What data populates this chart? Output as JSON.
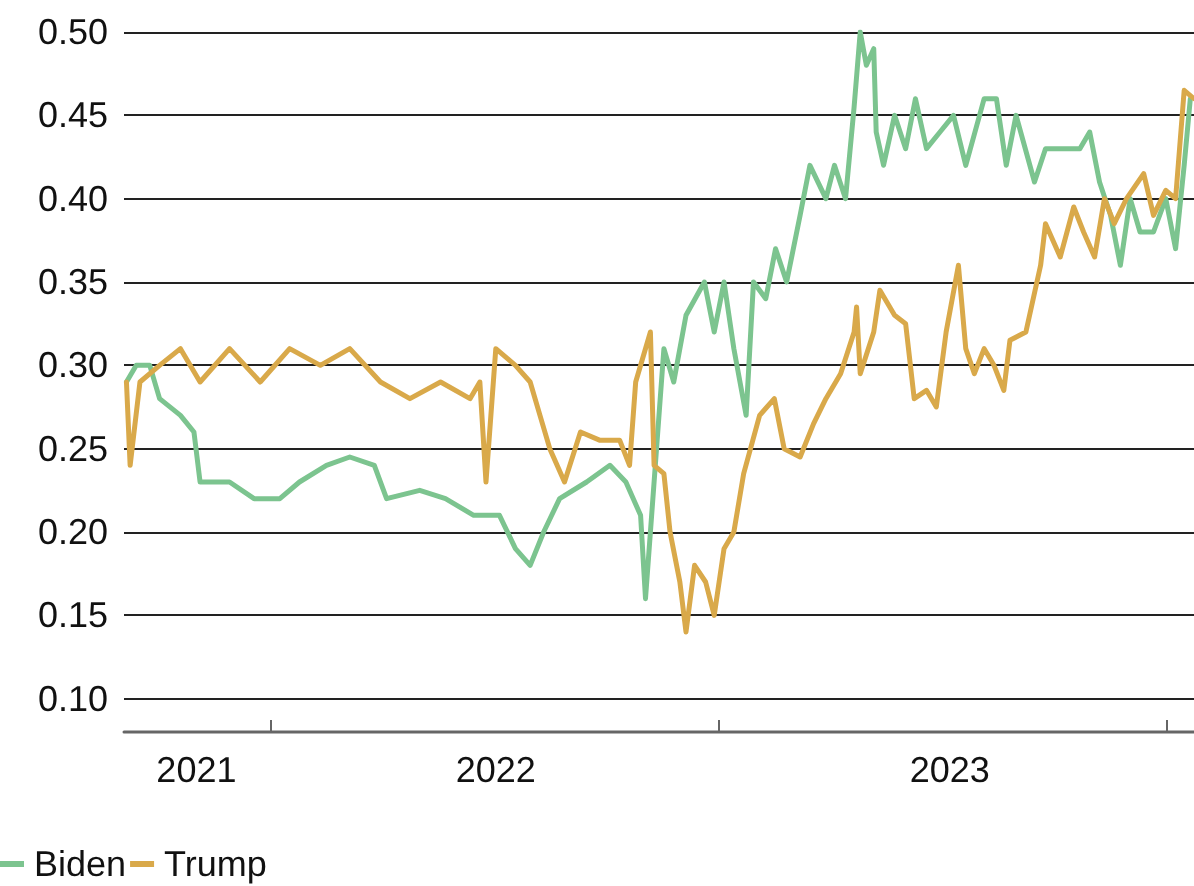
{
  "chart_data": {
    "type": "line",
    "xlim": [
      "2021-09-04",
      "2024-01-24"
    ],
    "xticks": [
      {
        "value": "2021-11-02",
        "label": "2021"
      },
      {
        "value": "2022-01-01",
        "label": null
      },
      {
        "value": "2022-07-04",
        "label": "2022"
      },
      {
        "value": "2023-01-01",
        "label": null
      },
      {
        "value": "2023-07-09",
        "label": "2023"
      },
      {
        "value": "2024-01-01",
        "label": null
      }
    ],
    "ylim": [
      0.08,
      0.5
    ],
    "yticks": [
      {
        "value": 0.1,
        "label": "0.10"
      },
      {
        "value": 0.15,
        "label": "0.15"
      },
      {
        "value": 0.2,
        "label": "0.20"
      },
      {
        "value": 0.25,
        "label": "0.25"
      },
      {
        "value": 0.3,
        "label": "0.30"
      },
      {
        "value": 0.35,
        "label": "0.35"
      },
      {
        "value": 0.4,
        "label": "0.40"
      },
      {
        "value": 0.45,
        "label": "0.45"
      },
      {
        "value": 0.5,
        "label": "0.50"
      }
    ],
    "grid": "y",
    "legend": "bottom",
    "marker": "none",
    "line_style": "solid",
    "series": [
      {
        "name": "Biden",
        "color": "#7cc48f",
        "x": [
          "2021-09-06",
          "2021-09-14",
          "2021-09-25",
          "2021-10-03",
          "2021-10-20",
          "2021-10-31",
          "2021-11-05",
          "2021-11-29",
          "2021-12-19",
          "2022-01-09",
          "2022-01-25",
          "2022-02-16",
          "2022-03-07",
          "2022-03-27",
          "2022-04-06",
          "2022-05-03",
          "2022-05-24",
          "2022-06-16",
          "2022-07-07",
          "2022-07-20",
          "2022-08-01",
          "2022-08-12",
          "2022-08-25",
          "2022-09-16",
          "2022-10-05",
          "2022-10-18",
          "2022-10-30",
          "2022-11-03",
          "2022-11-12",
          "2022-11-18",
          "2022-11-26",
          "2022-12-06",
          "2022-12-21",
          "2022-12-29",
          "2023-01-06",
          "2023-01-14",
          "2023-01-24",
          "2023-01-30",
          "2023-02-09",
          "2023-02-17",
          "2023-02-26",
          "2023-03-09",
          "2023-03-17",
          "2023-03-30",
          "2023-04-06",
          "2023-04-15",
          "2023-04-22",
          "2023-04-27",
          "2023-05-02",
          "2023-05-08",
          "2023-05-10",
          "2023-05-16",
          "2023-05-25",
          "2023-06-03",
          "2023-06-11",
          "2023-06-20",
          "2023-07-01",
          "2023-07-12",
          "2023-07-22",
          "2023-08-06",
          "2023-08-16",
          "2023-08-24",
          "2023-09-01",
          "2023-09-16",
          "2023-09-25",
          "2023-10-12",
          "2023-10-23",
          "2023-10-31",
          "2023-11-08",
          "2023-11-17",
          "2023-11-25",
          "2023-12-03",
          "2023-12-11",
          "2023-12-22",
          "2024-01-01",
          "2024-01-09",
          "2024-01-16",
          "2024-01-21"
        ],
        "values": [
          0.29,
          0.3,
          0.3,
          0.28,
          0.27,
          0.26,
          0.23,
          0.23,
          0.22,
          0.22,
          0.23,
          0.24,
          0.245,
          0.24,
          0.22,
          0.225,
          0.22,
          0.21,
          0.21,
          0.19,
          0.18,
          0.2,
          0.22,
          0.23,
          0.24,
          0.23,
          0.21,
          0.16,
          0.25,
          0.31,
          0.29,
          0.33,
          0.35,
          0.32,
          0.35,
          0.31,
          0.27,
          0.35,
          0.34,
          0.37,
          0.35,
          0.39,
          0.42,
          0.4,
          0.42,
          0.4,
          0.455,
          0.5,
          0.48,
          0.49,
          0.44,
          0.42,
          0.45,
          0.43,
          0.46,
          0.43,
          0.44,
          0.45,
          0.42,
          0.46,
          0.46,
          0.42,
          0.45,
          0.41,
          0.43,
          0.43,
          0.43,
          0.44,
          0.41,
          0.39,
          0.36,
          0.4,
          0.38,
          0.38,
          0.4,
          0.37,
          0.42,
          0.46
        ]
      },
      {
        "name": "Trump",
        "color": "#d9a94a",
        "x": [
          "2021-09-06",
          "2021-09-09",
          "2021-09-17",
          "2021-10-03",
          "2021-10-20",
          "2021-11-05",
          "2021-11-29",
          "2021-12-24",
          "2022-01-17",
          "2022-02-11",
          "2022-03-07",
          "2022-04-01",
          "2022-04-25",
          "2022-05-20",
          "2022-06-13",
          "2022-06-21",
          "2022-06-26",
          "2022-07-04",
          "2022-07-20",
          "2022-08-01",
          "2022-08-09",
          "2022-08-17",
          "2022-08-29",
          "2022-09-11",
          "2022-09-27",
          "2022-10-13",
          "2022-10-21",
          "2022-10-26",
          "2022-11-07",
          "2022-11-10",
          "2022-11-18",
          "2022-11-23",
          "2022-12-01",
          "2022-12-06",
          "2022-12-13",
          "2022-12-22",
          "2022-12-29",
          "2023-01-06",
          "2023-01-14",
          "2023-01-22",
          "2023-02-04",
          "2023-02-16",
          "2023-02-24",
          "2023-03-09",
          "2023-03-20",
          "2023-03-30",
          "2023-04-11",
          "2023-04-22",
          "2023-04-24",
          "2023-04-27",
          "2023-05-08",
          "2023-05-13",
          "2023-05-25",
          "2023-06-03",
          "2023-06-10",
          "2023-06-20",
          "2023-06-28",
          "2023-07-06",
          "2023-07-16",
          "2023-07-22",
          "2023-07-29",
          "2023-08-06",
          "2023-08-14",
          "2023-08-22",
          "2023-08-27",
          "2023-09-09",
          "2023-09-21",
          "2023-09-25",
          "2023-10-07",
          "2023-10-18",
          "2023-10-26",
          "2023-11-04",
          "2023-11-12",
          "2023-11-20",
          "2023-11-30",
          "2023-12-14",
          "2023-12-22",
          "2024-01-01",
          "2024-01-09",
          "2024-01-16",
          "2024-01-24"
        ],
        "values": [
          0.29,
          0.24,
          0.29,
          0.3,
          0.31,
          0.29,
          0.31,
          0.29,
          0.31,
          0.3,
          0.31,
          0.29,
          0.28,
          0.29,
          0.28,
          0.29,
          0.23,
          0.31,
          0.3,
          0.29,
          0.27,
          0.25,
          0.23,
          0.26,
          0.255,
          0.255,
          0.24,
          0.29,
          0.32,
          0.24,
          0.235,
          0.2,
          0.17,
          0.14,
          0.18,
          0.17,
          0.15,
          0.19,
          0.2,
          0.235,
          0.27,
          0.28,
          0.25,
          0.245,
          0.265,
          0.28,
          0.295,
          0.32,
          0.335,
          0.295,
          0.32,
          0.345,
          0.33,
          0.325,
          0.28,
          0.285,
          0.275,
          0.32,
          0.36,
          0.31,
          0.295,
          0.31,
          0.3,
          0.285,
          0.315,
          0.32,
          0.36,
          0.385,
          0.365,
          0.395,
          0.38,
          0.365,
          0.4,
          0.385,
          0.4,
          0.415,
          0.39,
          0.405,
          0.4,
          0.465,
          0.46
        ]
      }
    ]
  }
}
